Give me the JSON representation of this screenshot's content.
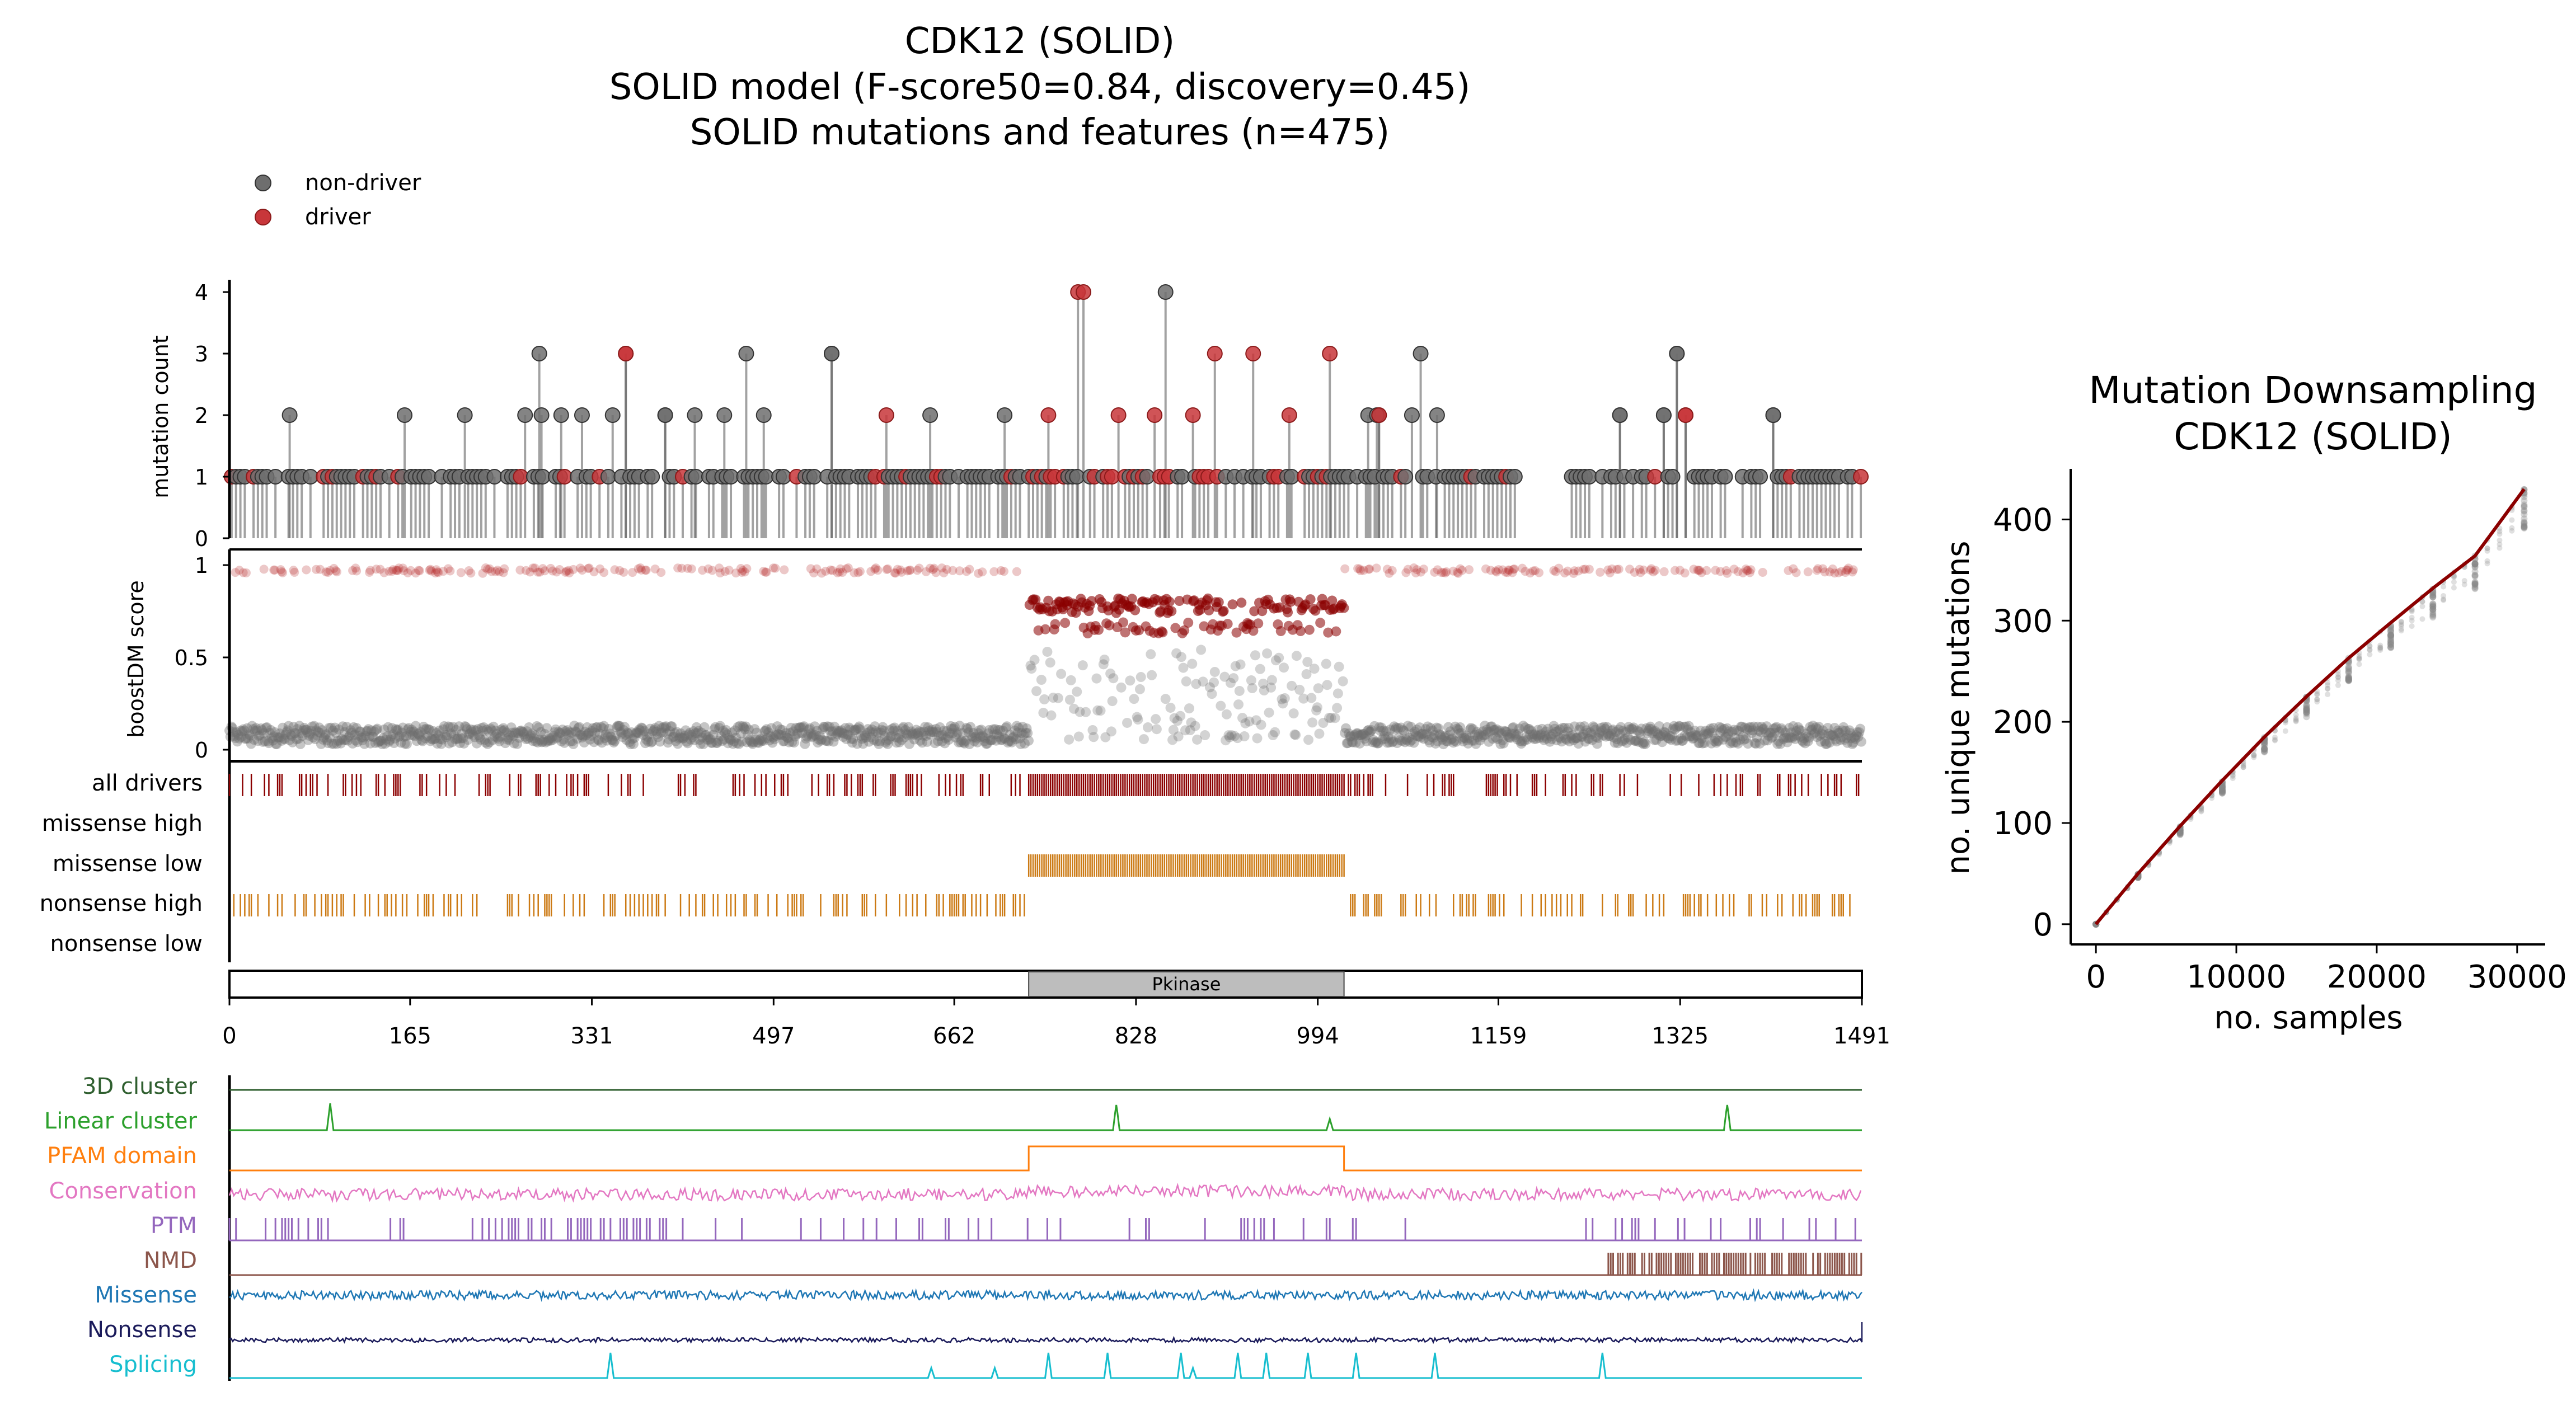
{
  "main_chart": {
    "title_lines": [
      "CDK12 (SOLID)",
      "SOLID model (F-score50=0.84, discovery=0.45)",
      "SOLID mutations and features (n=475)"
    ],
    "legend": [
      {
        "label": "non-driver",
        "color": "#6e6e6e"
      },
      {
        "label": "driver",
        "color": "#b22222"
      }
    ]
  },
  "chart_data": [
    {
      "type": "scatter",
      "name": "lollipop",
      "ylabel": "mutation count",
      "ylim": [
        0,
        4
      ],
      "yticks": [
        "0",
        "1",
        "2",
        "3",
        "4"
      ],
      "xlim": [
        0,
        1491
      ],
      "non_driver_positions_count_gt1": [
        {
          "pos": 55,
          "count": 2
        },
        {
          "pos": 160,
          "count": 2
        },
        {
          "pos": 215,
          "count": 2
        },
        {
          "pos": 270,
          "count": 2
        },
        {
          "pos": 283,
          "count": 3
        },
        {
          "pos": 285,
          "count": 2
        },
        {
          "pos": 303,
          "count": 2
        },
        {
          "pos": 322,
          "count": 2
        },
        {
          "pos": 350,
          "count": 2
        },
        {
          "pos": 398,
          "count": 2
        },
        {
          "pos": 425,
          "count": 2
        },
        {
          "pos": 452,
          "count": 2
        },
        {
          "pos": 472,
          "count": 3
        },
        {
          "pos": 488,
          "count": 2
        },
        {
          "pos": 550,
          "count": 3
        },
        {
          "pos": 640,
          "count": 2
        },
        {
          "pos": 708,
          "count": 2
        },
        {
          "pos": 780,
          "count": 2
        },
        {
          "pos": 855,
          "count": 4
        },
        {
          "pos": 900,
          "count": 2
        },
        {
          "pos": 1040,
          "count": 2
        },
        {
          "pos": 1048,
          "count": 2
        },
        {
          "pos": 1080,
          "count": 2
        },
        {
          "pos": 1088,
          "count": 3
        },
        {
          "pos": 1103,
          "count": 2
        },
        {
          "pos": 1270,
          "count": 2
        },
        {
          "pos": 1310,
          "count": 2
        },
        {
          "pos": 1322,
          "count": 3
        },
        {
          "pos": 1410,
          "count": 2
        }
      ],
      "driver_positions_count_gt1": [
        {
          "pos": 362,
          "count": 3
        },
        {
          "pos": 600,
          "count": 2
        },
        {
          "pos": 748,
          "count": 2
        },
        {
          "pos": 775,
          "count": 4
        },
        {
          "pos": 780,
          "count": 4
        },
        {
          "pos": 812,
          "count": 2
        },
        {
          "pos": 845,
          "count": 2
        },
        {
          "pos": 880,
          "count": 2
        },
        {
          "pos": 900,
          "count": 3
        },
        {
          "pos": 935,
          "count": 3
        },
        {
          "pos": 968,
          "count": 2
        },
        {
          "pos": 1005,
          "count": 3
        },
        {
          "pos": 1050,
          "count": 2
        },
        {
          "pos": 1330,
          "count": 2
        }
      ]
    },
    {
      "type": "scatter",
      "name": "boostdm",
      "ylabel": "boostDM score",
      "ylim": [
        0,
        1
      ],
      "yticks": [
        "0",
        "0.5",
        "1"
      ],
      "xlim": [
        0,
        1491
      ],
      "kinase_high_band_center": 0.78,
      "kinase_mid_band_center": 0.66,
      "non_driver_baseline": 0.03
    },
    {
      "type": "table",
      "name": "tracks",
      "rows": [
        {
          "label": "all drivers",
          "color": "#8b0000"
        },
        {
          "label": "missense high",
          "color": "#cc7a14"
        },
        {
          "label": "missense low",
          "color": "#cc7a14"
        },
        {
          "label": "nonsense high",
          "color": "#cc7a14"
        },
        {
          "label": "nonsense low",
          "color": "#cc7a14"
        }
      ],
      "missense_low_range": [
        730,
        1018
      ]
    },
    {
      "type": "bar",
      "name": "domains",
      "domain_label": "Pkinase",
      "domain_start": 730,
      "domain_end": 1018,
      "xticks": [
        "0",
        "165",
        "331",
        "497",
        "662",
        "828",
        "994",
        "1159",
        "1325",
        "1491"
      ]
    },
    {
      "type": "line",
      "name": "features",
      "rows": [
        {
          "label": "3D cluster",
          "color": "#2f5f2f"
        },
        {
          "label": "Linear cluster",
          "color": "#2ca02c"
        },
        {
          "label": "PFAM domain",
          "color": "#ff7f0e"
        },
        {
          "label": "Conservation",
          "color": "#e377c2"
        },
        {
          "label": "PTM",
          "color": "#9467bd"
        },
        {
          "label": "NMD",
          "color": "#8c564b"
        },
        {
          "label": "Missense",
          "color": "#1f77b4"
        },
        {
          "label": "Nonsense",
          "color": "#1a1a5a"
        },
        {
          "label": "Splicing",
          "color": "#17becf"
        }
      ],
      "linear_cluster_peaks": [
        92,
        810,
        1005,
        1368
      ],
      "pfam_range": [
        730,
        1018
      ],
      "nmd_start": 1255,
      "splicing_peaks": [
        348,
        641,
        699,
        748,
        802,
        869,
        880,
        921,
        947,
        985,
        1029,
        1101,
        1254
      ]
    },
    {
      "type": "scatter",
      "name": "downsampling",
      "title_lines": [
        "Mutation Downsampling",
        "CDK12 (SOLID)"
      ],
      "xlabel": "no. samples",
      "ylabel": "no. unique mutations",
      "xlim": [
        -1800,
        32000
      ],
      "ylim": [
        -20,
        450
      ],
      "xticks": [
        0,
        10000,
        20000,
        30000
      ],
      "yticks": [
        0,
        100,
        200,
        300,
        400
      ],
      "curve_x": [
        0,
        3000,
        6000,
        9000,
        12000,
        15000,
        18000,
        21000,
        24000,
        27000,
        30500
      ],
      "curve_y": [
        0,
        50,
        97,
        142,
        185,
        225,
        263,
        298,
        332,
        364,
        430
      ],
      "line_color": "#8b0000"
    }
  ]
}
